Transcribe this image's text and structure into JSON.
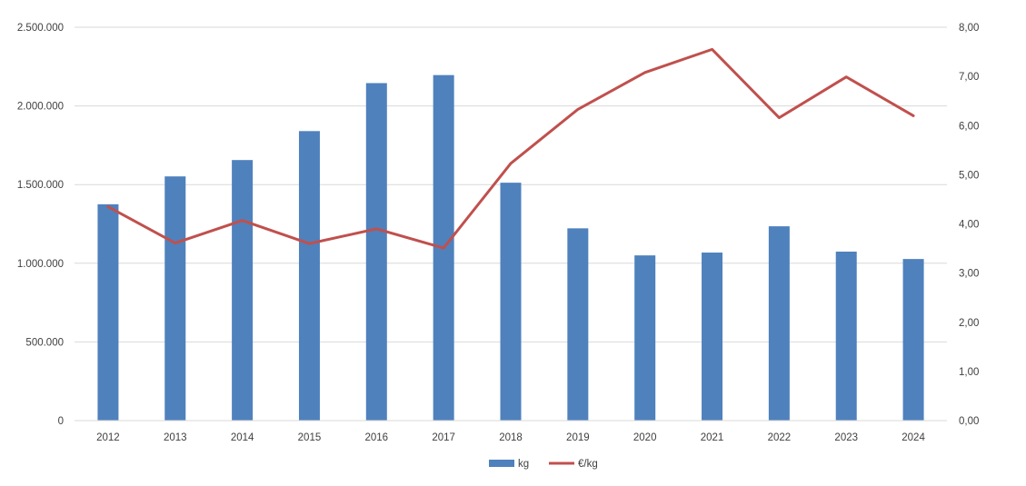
{
  "chart_data": {
    "type": "bar",
    "categories": [
      "2012",
      "2013",
      "2014",
      "2015",
      "2016",
      "2017",
      "2018",
      "2019",
      "2020",
      "2021",
      "2022",
      "2023",
      "2024"
    ],
    "series": [
      {
        "name": "kg",
        "type": "bar",
        "axis": "left",
        "color": "#4F81BD",
        "values": [
          1375000,
          1552000,
          1656000,
          1840000,
          2145000,
          2196000,
          1512000,
          1222000,
          1050000,
          1068000,
          1235000,
          1074000,
          1027000
        ]
      },
      {
        "name": "€/kg",
        "type": "line",
        "axis": "right",
        "color": "#C0504D",
        "values": [
          4.35,
          3.61,
          4.07,
          3.6,
          3.9,
          3.51,
          5.23,
          6.33,
          7.08,
          7.55,
          6.16,
          6.99,
          6.2
        ]
      }
    ],
    "y_left": {
      "ylim": [
        0,
        2500000
      ],
      "tick_values": [
        0,
        500000,
        1000000,
        1500000,
        2000000,
        2500000
      ],
      "tick_labels": [
        "0",
        "500.000",
        "1.000.000",
        "1.500.000",
        "2.000.000",
        "2.500.000"
      ]
    },
    "y_right": {
      "ylim": [
        0,
        8
      ],
      "tick_values": [
        0,
        1,
        2,
        3,
        4,
        5,
        6,
        7,
        8
      ],
      "tick_labels": [
        "0,00",
        "1,00",
        "2,00",
        "3,00",
        "4,00",
        "5,00",
        "6,00",
        "7,00",
        "8,00"
      ]
    },
    "grid": true,
    "legend": {
      "position": "bottom",
      "entries": [
        "kg",
        "€/kg"
      ]
    },
    "title": "",
    "xlabel": "",
    "ylabel": ""
  }
}
